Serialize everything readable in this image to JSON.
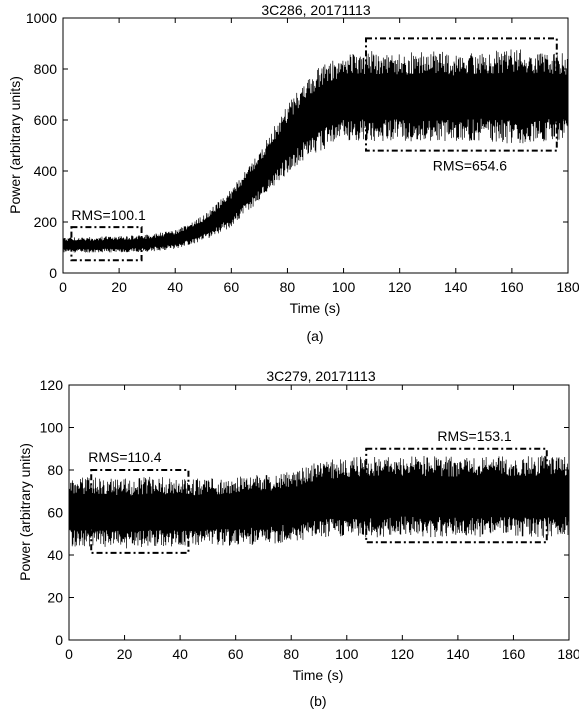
{
  "chart_data": [
    {
      "type": "line",
      "title": "3C286, 20171113",
      "xlabel": "Time (s)",
      "ylabel": "Power (arbitrary units)",
      "caption": "(a)",
      "xlim": [
        0,
        180
      ],
      "ylim": [
        0,
        1000
      ],
      "xticks": [
        0,
        20,
        40,
        60,
        80,
        100,
        120,
        140,
        160,
        180
      ],
      "yticks": [
        0,
        200,
        400,
        600,
        800,
        1000
      ],
      "grid": false,
      "series": [
        {
          "color": "#000000",
          "x": [
            0,
            10,
            20,
            30,
            40,
            50,
            60,
            70,
            80,
            90,
            100,
            110,
            120,
            130,
            140,
            150,
            160,
            170,
            180
          ],
          "mean": [
            110,
            110,
            111,
            115,
            130,
            175,
            255,
            380,
            525,
            640,
            690,
            692,
            690,
            693,
            692,
            690,
            694,
            692,
            690
          ],
          "upper": [
            140,
            142,
            145,
            150,
            168,
            225,
            330,
            480,
            660,
            800,
            860,
            870,
            860,
            875,
            860,
            865,
            880,
            870,
            860
          ],
          "lower": [
            80,
            80,
            80,
            82,
            95,
            125,
            180,
            280,
            390,
            470,
            520,
            515,
            520,
            510,
            515,
            520,
            505,
            515,
            520
          ]
        }
      ],
      "annotations": [
        {
          "text": "RMS=100.1",
          "box_x": [
            3,
            28
          ],
          "box_y": [
            50,
            180
          ]
        },
        {
          "text": "RMS=654.6",
          "box_x": [
            108,
            176
          ],
          "box_y": [
            480,
            920
          ]
        }
      ]
    },
    {
      "type": "line",
      "title": "3C279, 20171113",
      "xlabel": "Time (s)",
      "ylabel": "Power (arbitrary units)",
      "caption": "(b)",
      "xlim": [
        0,
        180
      ],
      "ylim": [
        0,
        120
      ],
      "xticks": [
        0,
        20,
        40,
        60,
        80,
        100,
        120,
        140,
        160,
        180
      ],
      "yticks": [
        0,
        20,
        40,
        60,
        80,
        100,
        120
      ],
      "grid": false,
      "series": [
        {
          "color": "#000000",
          "x": [
            0,
            10,
            20,
            30,
            40,
            50,
            60,
            70,
            80,
            90,
            100,
            110,
            120,
            130,
            140,
            150,
            160,
            170,
            180
          ],
          "mean": [
            60,
            60,
            60,
            60,
            60,
            60,
            60,
            61,
            62,
            65,
            67,
            67,
            67,
            67,
            67,
            67,
            67,
            67,
            67
          ],
          "upper": [
            76,
            77,
            76,
            77,
            76,
            76,
            77,
            78,
            80,
            84,
            86,
            87,
            86,
            87,
            86,
            87,
            86,
            87,
            86
          ],
          "lower": [
            44,
            44,
            43,
            44,
            44,
            45,
            44,
            45,
            46,
            48,
            49,
            48,
            49,
            48,
            49,
            48,
            49,
            48,
            49
          ]
        }
      ],
      "annotations": [
        {
          "text": "RMS=110.4",
          "box_x": [
            8,
            43
          ],
          "box_y": [
            41,
            80
          ]
        },
        {
          "text": "RMS=153.1",
          "box_x": [
            107,
            172
          ],
          "box_y": [
            46,
            90
          ]
        }
      ]
    }
  ]
}
